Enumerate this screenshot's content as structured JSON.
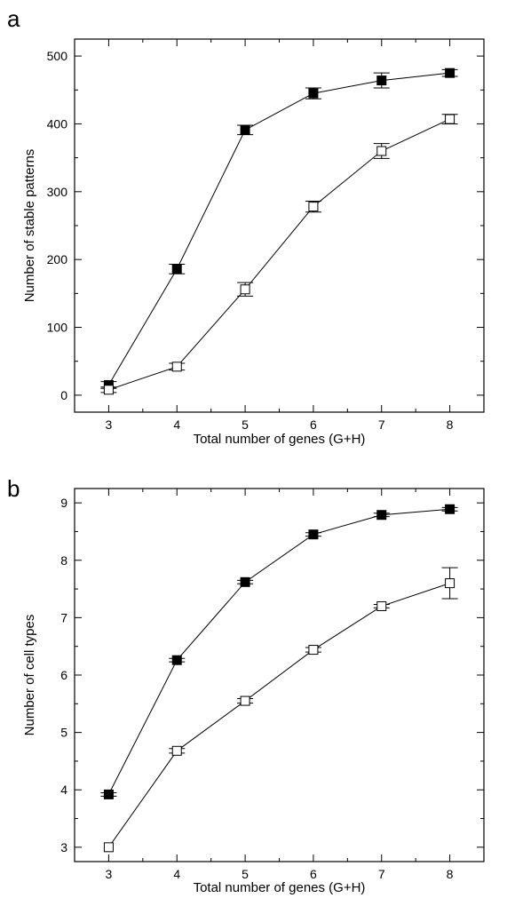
{
  "chart_data": [
    {
      "panel": "a",
      "type": "line",
      "xlabel": "Total number of genes (G+H)",
      "ylabel": "Number of stable patterns",
      "xlim": [
        2.5,
        8.5
      ],
      "ylim": [
        -25,
        525
      ],
      "x_ticks": [
        3,
        4,
        5,
        6,
        7,
        8
      ],
      "y_ticks": [
        0,
        100,
        200,
        300,
        400,
        500
      ],
      "grid": false,
      "series": [
        {
          "marker": "filled-square",
          "x": [
            3,
            4,
            5,
            6,
            7,
            8
          ],
          "y": [
            15,
            186,
            391,
            445,
            464,
            475
          ],
          "err": [
            5,
            7,
            7,
            8,
            11,
            5
          ]
        },
        {
          "marker": "open-square",
          "x": [
            3,
            4,
            5,
            6,
            7,
            8
          ],
          "y": [
            8,
            42,
            156,
            278,
            360,
            407
          ],
          "err": [
            4,
            5,
            10,
            8,
            11,
            7
          ]
        }
      ]
    },
    {
      "panel": "b",
      "type": "line",
      "xlabel": "Total number of genes (G+H)",
      "ylabel": "Number of cell types",
      "xlim": [
        2.5,
        8.5
      ],
      "ylim": [
        2.75,
        9.25
      ],
      "x_ticks": [
        3,
        4,
        5,
        6,
        7,
        8
      ],
      "y_ticks": [
        3,
        4,
        5,
        6,
        7,
        8,
        9
      ],
      "grid": false,
      "series": [
        {
          "marker": "filled-square",
          "x": [
            3,
            4,
            5,
            6,
            7,
            8
          ],
          "y": [
            3.92,
            6.26,
            7.62,
            8.45,
            8.79,
            8.89
          ],
          "err": [
            0.03,
            0.03,
            0.03,
            0.03,
            0.03,
            0.03
          ]
        },
        {
          "marker": "open-square",
          "x": [
            3,
            4,
            5,
            6,
            7,
            8
          ],
          "y": [
            3.0,
            4.68,
            5.55,
            6.44,
            7.2,
            7.6
          ],
          "err": [
            0.0,
            0.04,
            0.04,
            0.04,
            0.03,
            0.27
          ]
        }
      ]
    }
  ]
}
